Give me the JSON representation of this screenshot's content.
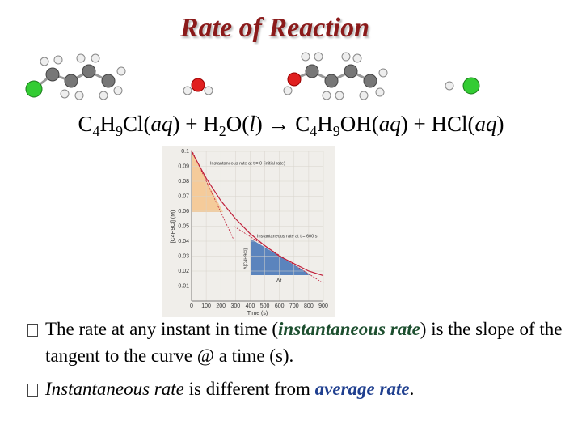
{
  "title": "Rate of Reaction",
  "equation": [
    "C",
    "4",
    "H",
    "9",
    "Cl(",
    "aq",
    ") + H",
    "2",
    "O(",
    "l",
    ") → C",
    "4",
    "H",
    "9",
    "OH(",
    "aq",
    ") + HCl(",
    "aq",
    ")"
  ],
  "bullets": [
    [
      "The rate at any instant in time (",
      "instantaneous rate",
      ") is the slope of the tangent to the curve @ a time (s)."
    ],
    [
      "Instantaneous rate",
      " is different from ",
      "average rate",
      "."
    ]
  ],
  "chart_data": {
    "type": "line",
    "x": [
      0,
      100,
      200,
      300,
      400,
      500,
      600,
      700,
      800,
      900
    ],
    "values": [
      0.1,
      0.082,
      0.067,
      0.055,
      0.045,
      0.037,
      0.03,
      0.025,
      0.02,
      0.017
    ],
    "color": "#c0203a",
    "xlim": [
      0,
      900
    ],
    "ylim": [
      0,
      0.1
    ],
    "xticks": [
      0,
      100,
      200,
      300,
      400,
      500,
      600,
      700,
      800,
      900
    ],
    "yticks": [
      0.01,
      0.02,
      0.03,
      0.04,
      0.05,
      0.06,
      0.07,
      0.08,
      0.09,
      0.1
    ],
    "xlabel": "Time (s)",
    "ylabel": "[C4H9Cl] (M)",
    "annotations": [
      "Instantaneous rate at t = 0 (initial rate)",
      "Instantaneous rate at t = 600 s",
      "Δ[C4H9Cl]",
      "Δt"
    ],
    "grid": true
  }
}
